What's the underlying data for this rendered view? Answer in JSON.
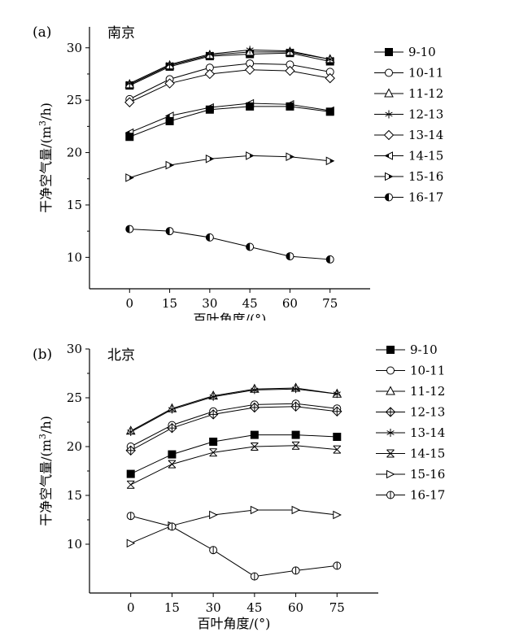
{
  "figure": {
    "panels": [
      {
        "label": "(a)",
        "city": "南京"
      },
      {
        "label": "(b)",
        "city": "北京"
      }
    ]
  },
  "chart_data": [
    {
      "type": "line",
      "title": "南京",
      "panel_label": "(a)",
      "xlabel": "百叶角度/(°)",
      "ylabel": "干净空气量/(m³/h)",
      "ylabel_parts": {
        "main": "干净空气量/(m",
        "sup": "3",
        "end": "/h)"
      },
      "x": [
        0,
        15,
        30,
        45,
        60,
        75
      ],
      "x_ticks": [
        "0",
        "15",
        "30",
        "45",
        "60",
        "75"
      ],
      "xlim": [
        -15,
        90
      ],
      "ylim": [
        7,
        32
      ],
      "y_ticks": [
        10,
        15,
        20,
        25,
        30
      ],
      "legend_position": "right",
      "grid": false,
      "series": [
        {
          "name": "9-10",
          "marker": "square-filled",
          "values": [
            26.4,
            28.2,
            29.2,
            29.4,
            29.5,
            28.7
          ]
        },
        {
          "name": "10-11",
          "marker": "circle-open",
          "values": [
            25.1,
            27.0,
            28.1,
            28.5,
            28.4,
            27.7
          ]
        },
        {
          "name": "11-12",
          "marker": "triangle-open",
          "values": [
            26.5,
            28.3,
            29.3,
            29.6,
            29.6,
            28.9
          ]
        },
        {
          "name": "12-13",
          "marker": "asterisk",
          "values": [
            26.6,
            28.4,
            29.4,
            29.8,
            29.7,
            28.9
          ]
        },
        {
          "name": "13-14",
          "marker": "diamond-open",
          "values": [
            24.8,
            26.6,
            27.5,
            27.9,
            27.8,
            27.1
          ]
        },
        {
          "name": "14-15",
          "marker": "triangle-left-half",
          "values": [
            21.9,
            23.5,
            24.3,
            24.7,
            24.6,
            24.0
          ]
        },
        {
          "name": "15-16",
          "marker": "triangle-right-half",
          "values": [
            17.6,
            18.8,
            19.4,
            19.7,
            19.6,
            19.2
          ]
        },
        {
          "name": "16-17",
          "marker": "circle-half",
          "values": [
            12.7,
            12.5,
            11.9,
            11.0,
            10.1,
            9.8
          ]
        },
        {
          "name": "",
          "marker": "square-filled",
          "values": [
            21.5,
            23.0,
            24.1,
            24.4,
            24.4,
            23.9
          ]
        }
      ]
    },
    {
      "type": "line",
      "title": "北京",
      "panel_label": "(b)",
      "xlabel": "百叶角度/(°)",
      "ylabel": "干净空气量/(m³/h)",
      "ylabel_parts": {
        "main": "干净空气量/(m",
        "sup": "3",
        "end": "/h)"
      },
      "x": [
        0,
        15,
        30,
        45,
        60,
        75
      ],
      "x_ticks": [
        "0",
        "15",
        "30",
        "45",
        "60",
        "75"
      ],
      "xlim": [
        -15,
        90
      ],
      "ylim": [
        5,
        30
      ],
      "y_ticks": [
        10,
        15,
        20,
        25,
        30
      ],
      "legend_position": "right",
      "grid": false,
      "series": [
        {
          "name": "9-10",
          "marker": "square-filled",
          "values": [
            17.2,
            19.2,
            20.5,
            21.2,
            21.2,
            21.0
          ]
        },
        {
          "name": "10-11",
          "marker": "circle-open",
          "values": [
            20.0,
            22.2,
            23.6,
            24.3,
            24.4,
            23.9
          ]
        },
        {
          "name": "11-12",
          "marker": "triangle-open",
          "values": [
            21.6,
            23.9,
            25.2,
            25.9,
            26.0,
            25.4
          ]
        },
        {
          "name": "12-13",
          "marker": "diamond-cross",
          "values": [
            19.6,
            21.9,
            23.3,
            24.0,
            24.1,
            23.6
          ]
        },
        {
          "name": "13-14",
          "marker": "asterisk",
          "values": [
            21.5,
            23.8,
            25.1,
            25.8,
            25.9,
            25.4
          ]
        },
        {
          "name": "14-15",
          "marker": "x-box",
          "values": [
            16.1,
            18.2,
            19.4,
            20.0,
            20.1,
            19.7
          ]
        },
        {
          "name": "15-16",
          "marker": "triangle-right-open",
          "values": [
            10.1,
            11.9,
            13.0,
            13.5,
            13.5,
            13.0
          ]
        },
        {
          "name": "16-17",
          "marker": "circle-bar",
          "values": [
            12.9,
            11.8,
            9.4,
            6.7,
            7.3,
            7.8
          ]
        }
      ]
    }
  ]
}
